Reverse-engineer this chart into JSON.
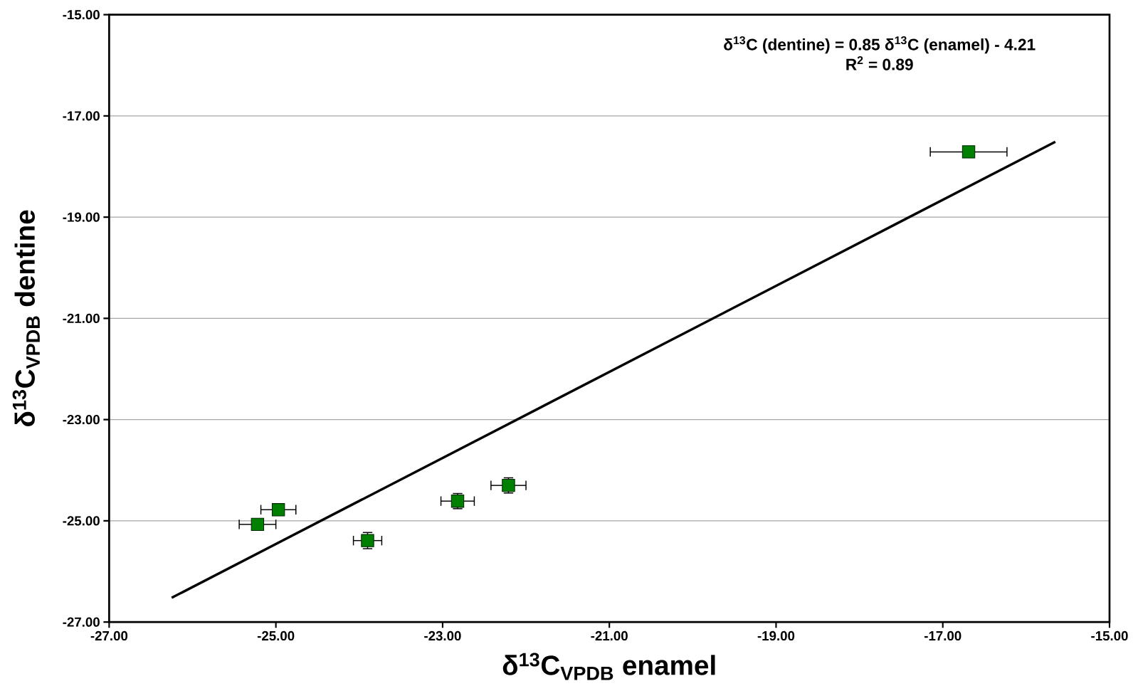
{
  "chart_data": {
    "type": "scatter",
    "xlabel": "δ$^{13}$C$_{VPDB}$ enamel",
    "ylabel": "δ$^{13}$C$_{VPDB}$ dentine",
    "annotations": [
      "δ$^{13}$C (dentine) = 0.85 δ$^{13}$C (enamel)  - 4.21",
      "R$^{2}$ = 0.89"
    ],
    "series": [
      {
        "color": "#008000",
        "marker": "square",
        "x": [
          -25.22,
          -24.97,
          -23.9,
          -22.82,
          -22.21,
          -16.69
        ],
        "values": [
          -25.07,
          -24.78,
          -25.39,
          -24.61,
          -24.3,
          -17.71
        ],
        "xerrors": [
          0.22,
          0.21,
          0.17,
          0.2,
          0.21,
          0.46
        ],
        "errors": [
          null,
          null,
          0.16,
          0.15,
          0.15,
          null
        ]
      },
      {
        "type": "line",
        "color": "#000000",
        "marker": "none",
        "line_style": "solid",
        "x": [
          -26.25,
          -15.65
        ],
        "values": [
          -26.52,
          -17.51
        ]
      }
    ],
    "xlim": [
      -27,
      -15
    ],
    "ylim": [
      -27,
      -15
    ],
    "xticks": [
      {
        "value": -27,
        "label": "-27.00"
      },
      {
        "value": -25,
        "label": "-25.00"
      },
      {
        "value": -23,
        "label": "-23.00"
      },
      {
        "value": -21,
        "label": "-21.00"
      },
      {
        "value": -19,
        "label": "-19.00"
      },
      {
        "value": -17,
        "label": "-17.00"
      },
      {
        "value": -15,
        "label": "-15.00"
      }
    ],
    "yticks": [
      {
        "value": -27,
        "label": "-27.00"
      },
      {
        "value": -25,
        "label": "-25.00"
      },
      {
        "value": -23,
        "label": "-23.00"
      },
      {
        "value": -21,
        "label": "-21.00"
      },
      {
        "value": -19,
        "label": "-19.00"
      },
      {
        "value": -17,
        "label": "-17.00"
      },
      {
        "value": -15,
        "label": "-15.00"
      }
    ],
    "grid": "y"
  }
}
